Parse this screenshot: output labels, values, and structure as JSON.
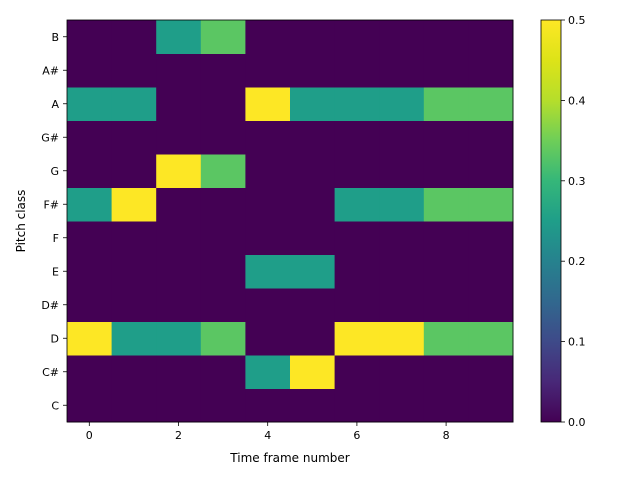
{
  "chart_data": {
    "type": "heatmap",
    "title": "",
    "xlabel": "Time frame number",
    "ylabel": "Pitch class",
    "x": [
      0,
      1,
      2,
      3,
      4,
      5,
      6,
      7,
      8,
      9
    ],
    "x_ticks": [
      0,
      2,
      4,
      6,
      8
    ],
    "y_categories": [
      "C",
      "C#",
      "D",
      "D#",
      "E",
      "F",
      "F#",
      "G",
      "G#",
      "A",
      "A#",
      "B"
    ],
    "values": [
      [
        0,
        0,
        0,
        0,
        0,
        0,
        0,
        0,
        0,
        0
      ],
      [
        0,
        0,
        0,
        0,
        0.25,
        0.5,
        0,
        0,
        0,
        0
      ],
      [
        0.5,
        0.25,
        0.25,
        0.333,
        0,
        0,
        0.5,
        0.5,
        0.333,
        0.333
      ],
      [
        0,
        0,
        0,
        0,
        0,
        0,
        0,
        0,
        0,
        0
      ],
      [
        0,
        0,
        0,
        0,
        0.25,
        0.25,
        0,
        0,
        0,
        0
      ],
      [
        0,
        0,
        0,
        0,
        0,
        0,
        0,
        0,
        0,
        0
      ],
      [
        0.25,
        0.5,
        0,
        0,
        0,
        0,
        0.25,
        0.25,
        0.333,
        0.333
      ],
      [
        0,
        0,
        0.5,
        0.333,
        0,
        0,
        0,
        0,
        0,
        0
      ],
      [
        0,
        0,
        0,
        0,
        0,
        0,
        0,
        0,
        0,
        0
      ],
      [
        0.25,
        0.25,
        0,
        0,
        0.5,
        0.25,
        0.25,
        0.25,
        0.333,
        0.333
      ],
      [
        0,
        0,
        0,
        0,
        0,
        0,
        0,
        0,
        0,
        0
      ],
      [
        0,
        0,
        0.25,
        0.333,
        0,
        0,
        0,
        0,
        0,
        0
      ]
    ],
    "colormap": "viridis",
    "vmin": 0,
    "vmax": 0.5,
    "colorbar_ticks": [
      "0.0",
      "0.1",
      "0.2",
      "0.3",
      "0.4",
      "0.5"
    ],
    "grid": false
  }
}
